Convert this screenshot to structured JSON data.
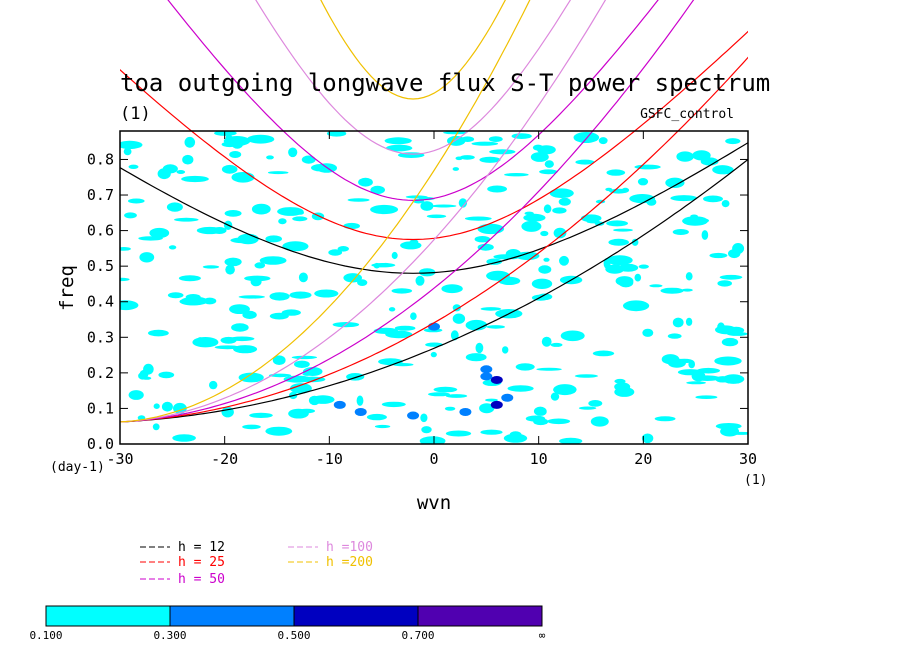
{
  "chart_data": {
    "type": "heatmap",
    "title": "toa outgoing longwave flux S-T power spectrum",
    "units_label": "(1)",
    "case_label": "GSFC_control",
    "xlabel": "wvn",
    "ylabel": "freq",
    "x_unit_label": "(1)",
    "y_unit_label": "(day-1)",
    "xlim": [
      -30,
      30
    ],
    "ylim": [
      0,
      0.88
    ],
    "x_ticks": [
      -30,
      -20,
      -10,
      0,
      10,
      20,
      30
    ],
    "y_ticks": [
      0.0,
      0.1,
      0.2,
      0.3,
      0.4,
      0.5,
      0.6,
      0.7,
      0.8
    ],
    "y_tick_labels": [
      "0.0",
      "0.1",
      "0.2",
      "0.3",
      "0.4",
      "0.5",
      "0.6",
      "0.7",
      "0.8"
    ],
    "contour_levels": [
      0.1,
      0.3,
      0.5,
      0.7
    ],
    "colorbar": {
      "labels": [
        "0.100",
        "0.300",
        "0.500",
        "0.700",
        "∞"
      ],
      "colors": [
        "#00ffff",
        "#0080ff",
        "#0000c0",
        "#5000b0"
      ]
    },
    "series": [
      {
        "name": "h = 12",
        "color": "#000000",
        "inertia_gravity_min": 0.48,
        "kelvin_slope": 0.0208
      },
      {
        "name": "h = 25",
        "color": "#ff0000",
        "inertia_gravity_min": 0.575,
        "kelvin_slope": 0.03
      },
      {
        "name": "h = 50",
        "color": "#cc00cc",
        "inertia_gravity_min": 0.685,
        "kelvin_slope": 0.0425
      },
      {
        "name": "h =100",
        "color": "#dd88dd",
        "inertia_gravity_min": 0.815,
        "kelvin_slope": 0.06
      },
      {
        "name": "h =200",
        "color": "#f0c000",
        "inertia_gravity_min": 0.97,
        "kelvin_slope": 0.085
      }
    ]
  }
}
